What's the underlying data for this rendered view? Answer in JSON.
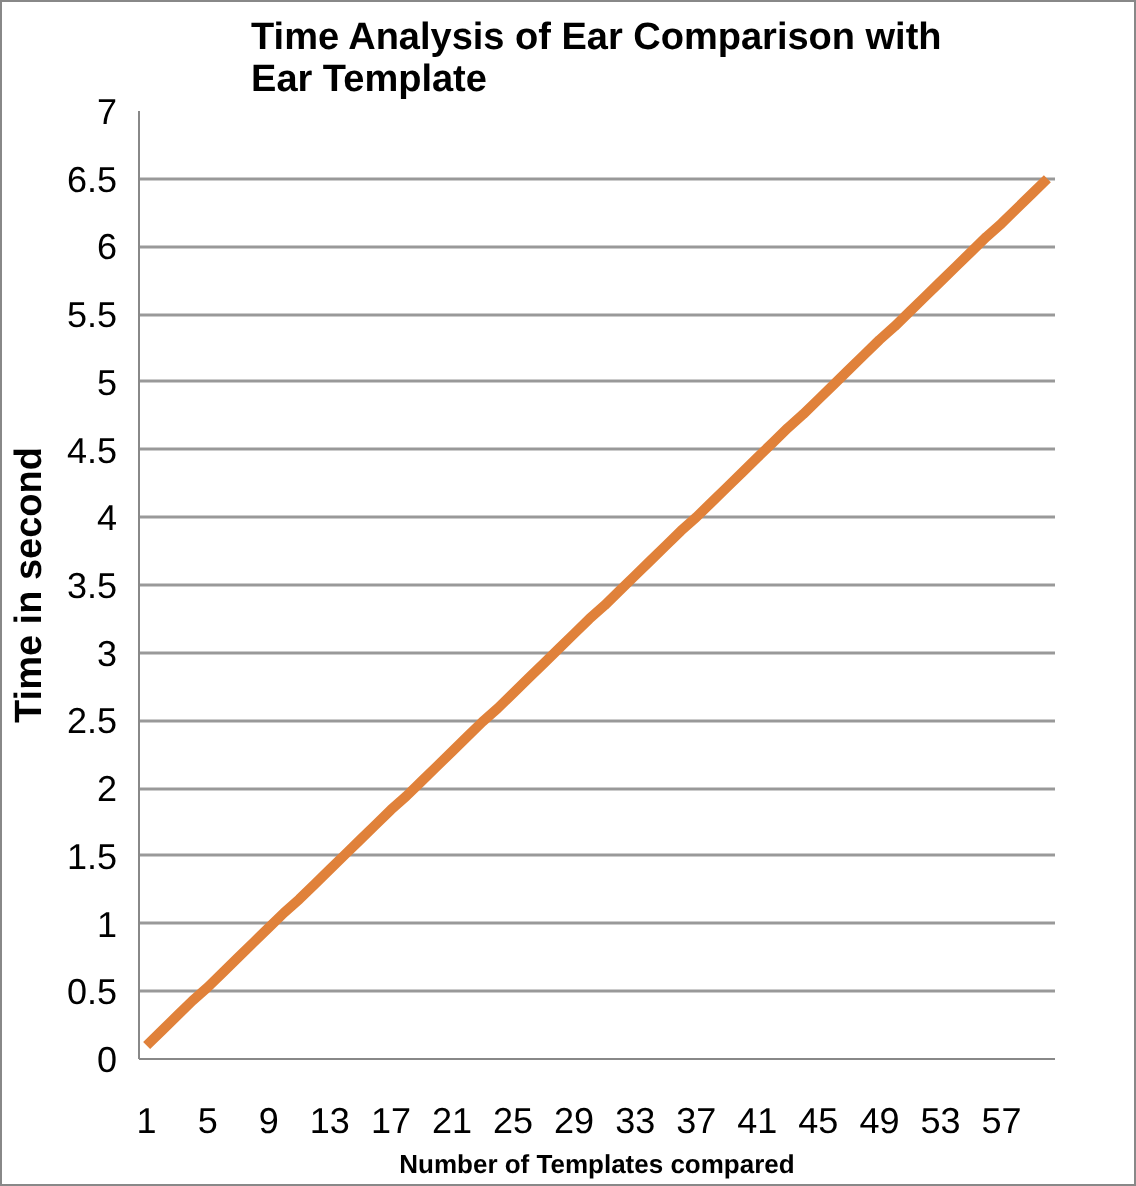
{
  "chart_data": {
    "type": "line",
    "title": "Time Analysis of Ear Comparison with Ear Template",
    "xlabel": "Number of Templates compared",
    "ylabel": "Time in second",
    "categories": [
      "1",
      null,
      null,
      null,
      "5",
      null,
      null,
      null,
      "9",
      null,
      null,
      null,
      "13",
      null,
      null,
      null,
      "17",
      null,
      null,
      null,
      "21",
      null,
      null,
      null,
      "25",
      null,
      null,
      null,
      "29",
      null,
      null,
      null,
      "33",
      null,
      null,
      null,
      "37",
      null,
      null,
      null,
      "41",
      null,
      null,
      null,
      "45",
      null,
      null,
      null,
      "49",
      null,
      null,
      null,
      "53",
      null,
      null,
      null,
      "57",
      null,
      null,
      null
    ],
    "series": [
      {
        "color": "#e0813a",
        "values": [
          0.1,
          0.21,
          0.32,
          0.43,
          0.53,
          0.64,
          0.75,
          0.86,
          0.97,
          1.08,
          1.18,
          1.29,
          1.4,
          1.51,
          1.62,
          1.73,
          1.84,
          1.94,
          2.05,
          2.16,
          2.27,
          2.38,
          2.49,
          2.59,
          2.7,
          2.81,
          2.92,
          3.03,
          3.14,
          3.25,
          3.35,
          3.46,
          3.57,
          3.68,
          3.79,
          3.9,
          4.0,
          4.11,
          4.22,
          4.33,
          4.44,
          4.55,
          4.66,
          4.76,
          4.87,
          4.98,
          5.09,
          5.2,
          5.31,
          5.41,
          5.52,
          5.63,
          5.74,
          5.85,
          5.96,
          6.07,
          6.17,
          6.28,
          6.39,
          6.5
        ]
      }
    ],
    "ylim": [
      0,
      7
    ],
    "yticks": [
      0,
      0.5,
      1,
      1.5,
      2,
      2.5,
      3,
      3.5,
      4,
      4.5,
      5,
      5.5,
      6,
      6.5,
      7
    ],
    "grid": "y",
    "marker": "none",
    "line_style": "solid"
  }
}
